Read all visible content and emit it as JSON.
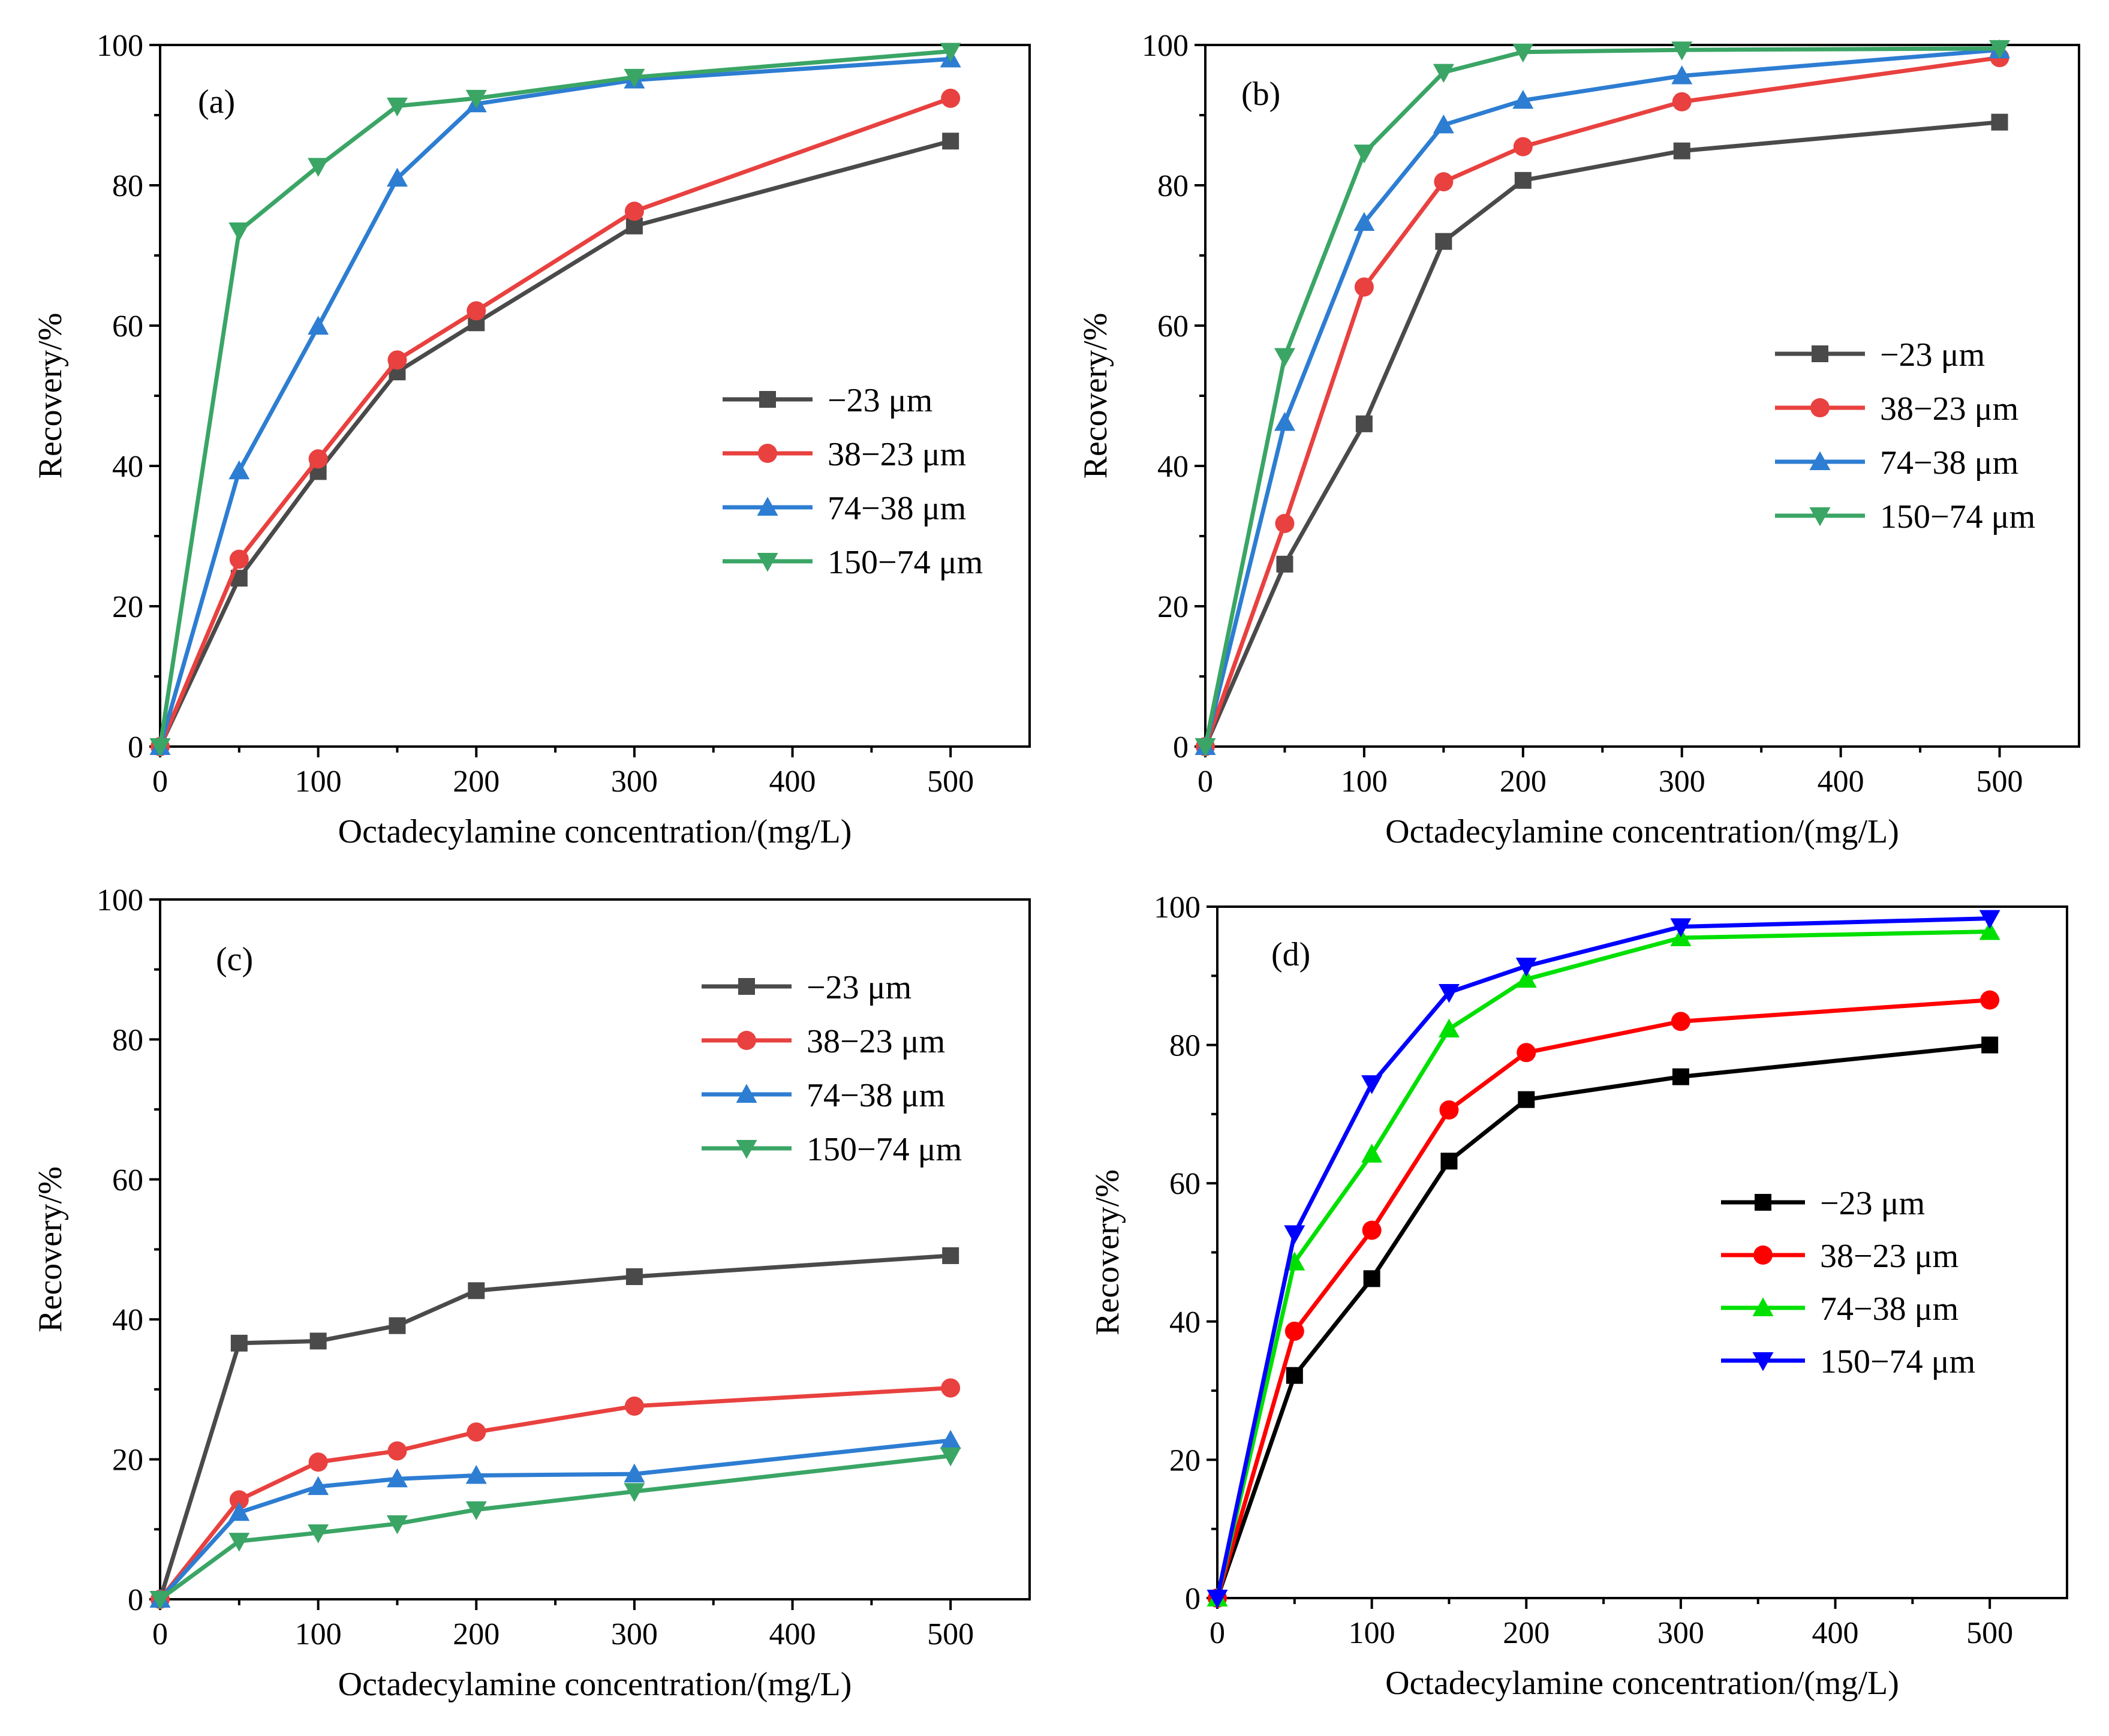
{
  "chart_data": [
    {
      "type": "line",
      "panel_label": "(a)",
      "xlabel": "Octadecylamine concentration/(mg/L)",
      "ylabel": "Recovery/%",
      "xlim": [
        0,
        550
      ],
      "ylim": [
        0,
        100
      ],
      "xticks": [
        0,
        100,
        200,
        300,
        400,
        500
      ],
      "yticks": [
        0,
        20,
        40,
        60,
        80,
        100
      ],
      "x": [
        0,
        50,
        100,
        150,
        200,
        300,
        500
      ],
      "legend_position": "center-right",
      "series": [
        {
          "name": "−23 μm",
          "color": "#4a4a4a",
          "marker": "square",
          "values": [
            0,
            24.0,
            39.2,
            53.4,
            60.4,
            74.2,
            86.3
          ]
        },
        {
          "name": "38−23 μm",
          "color": "#e8413f",
          "marker": "circle",
          "values": [
            0,
            26.7,
            41.0,
            55.1,
            62.1,
            76.3,
            92.4
          ]
        },
        {
          "name": "74−38 μm",
          "color": "#2d7dd2",
          "marker": "triangle-up",
          "values": [
            0,
            39.3,
            59.9,
            81.0,
            91.6,
            95.0,
            98.0
          ]
        },
        {
          "name": "150−74 μm",
          "color": "#3aa565",
          "marker": "triangle-down",
          "values": [
            0,
            73.5,
            82.7,
            91.3,
            92.4,
            95.4,
            99.1
          ]
        }
      ]
    },
    {
      "type": "line",
      "panel_label": "(b)",
      "xlabel": "Octadecylamine concentration/(mg/L)",
      "ylabel": "Recovery/%",
      "xlim": [
        0,
        550
      ],
      "ylim": [
        0,
        100
      ],
      "xticks": [
        0,
        100,
        200,
        300,
        400,
        500
      ],
      "yticks": [
        0,
        20,
        40,
        60,
        80,
        100
      ],
      "x": [
        0,
        50,
        100,
        150,
        200,
        300,
        500
      ],
      "legend_position": "center-right",
      "series": [
        {
          "name": "−23 μm",
          "color": "#4a4a4a",
          "marker": "square",
          "values": [
            0,
            26.0,
            46.0,
            72.0,
            80.7,
            84.9,
            89.0
          ]
        },
        {
          "name": "38−23 μm",
          "color": "#e8413f",
          "marker": "circle",
          "values": [
            0,
            31.8,
            65.5,
            80.5,
            85.5,
            91.9,
            98.2
          ]
        },
        {
          "name": "74−38 μm",
          "color": "#2d7dd2",
          "marker": "triangle-up",
          "values": [
            0,
            46.2,
            74.7,
            88.6,
            92.1,
            95.6,
            99.3
          ]
        },
        {
          "name": "150−74 μm",
          "color": "#3aa565",
          "marker": "triangle-down",
          "values": [
            0,
            55.6,
            84.6,
            96.1,
            99.0,
            99.3,
            99.5
          ]
        }
      ]
    },
    {
      "type": "line",
      "panel_label": "(c)",
      "xlabel": "Octadecylamine concentration/(mg/L)",
      "ylabel": "Recovery/%",
      "xlim": [
        0,
        550
      ],
      "ylim": [
        0,
        100
      ],
      "xticks": [
        0,
        100,
        200,
        300,
        400,
        500
      ],
      "yticks": [
        0,
        20,
        40,
        60,
        80,
        100
      ],
      "x": [
        0,
        50,
        100,
        150,
        200,
        300,
        500
      ],
      "legend_position": "top-right",
      "series": [
        {
          "name": "−23 μm",
          "color": "#4a4a4a",
          "marker": "square",
          "values": [
            0,
            36.6,
            36.9,
            39.1,
            44.1,
            46.1,
            49.1
          ]
        },
        {
          "name": "38−23 μm",
          "color": "#e8413f",
          "marker": "circle",
          "values": [
            0,
            14.2,
            19.6,
            21.2,
            23.9,
            27.6,
            30.2
          ]
        },
        {
          "name": "74−38 μm",
          "color": "#2d7dd2",
          "marker": "triangle-up",
          "values": [
            0,
            12.4,
            16.1,
            17.2,
            17.7,
            17.9,
            22.7
          ]
        },
        {
          "name": "150−74 μm",
          "color": "#3aa565",
          "marker": "triangle-down",
          "values": [
            0,
            8.3,
            9.5,
            10.8,
            12.8,
            15.4,
            20.5
          ]
        }
      ]
    },
    {
      "type": "line",
      "panel_label": "(d)",
      "xlabel": "Octadecylamine concentration/(mg/L)",
      "ylabel": "Recovery/%",
      "xlim": [
        0,
        550
      ],
      "ylim": [
        0,
        100
      ],
      "xticks": [
        0,
        100,
        200,
        300,
        400,
        500
      ],
      "yticks": [
        0,
        20,
        40,
        60,
        80,
        100
      ],
      "x": [
        0,
        50,
        100,
        150,
        200,
        300,
        500
      ],
      "legend_position": "center-right",
      "series": [
        {
          "name": "−23 μm",
          "color": "#000000",
          "marker": "square",
          "values": [
            0,
            32.2,
            46.2,
            63.2,
            72.1,
            75.4,
            80.0
          ]
        },
        {
          "name": "38−23 μm",
          "color": "#ff0000",
          "marker": "circle",
          "values": [
            0,
            38.6,
            53.2,
            70.6,
            78.9,
            83.4,
            86.5
          ]
        },
        {
          "name": "74−38 μm",
          "color": "#00e000",
          "marker": "triangle-up",
          "values": [
            0,
            48.6,
            64.2,
            82.3,
            89.5,
            95.5,
            96.4
          ]
        },
        {
          "name": "150−74 μm",
          "color": "#0000ff",
          "marker": "triangle-down",
          "values": [
            0,
            52.7,
            74.4,
            87.6,
            91.4,
            97.1,
            98.3
          ]
        }
      ]
    }
  ]
}
